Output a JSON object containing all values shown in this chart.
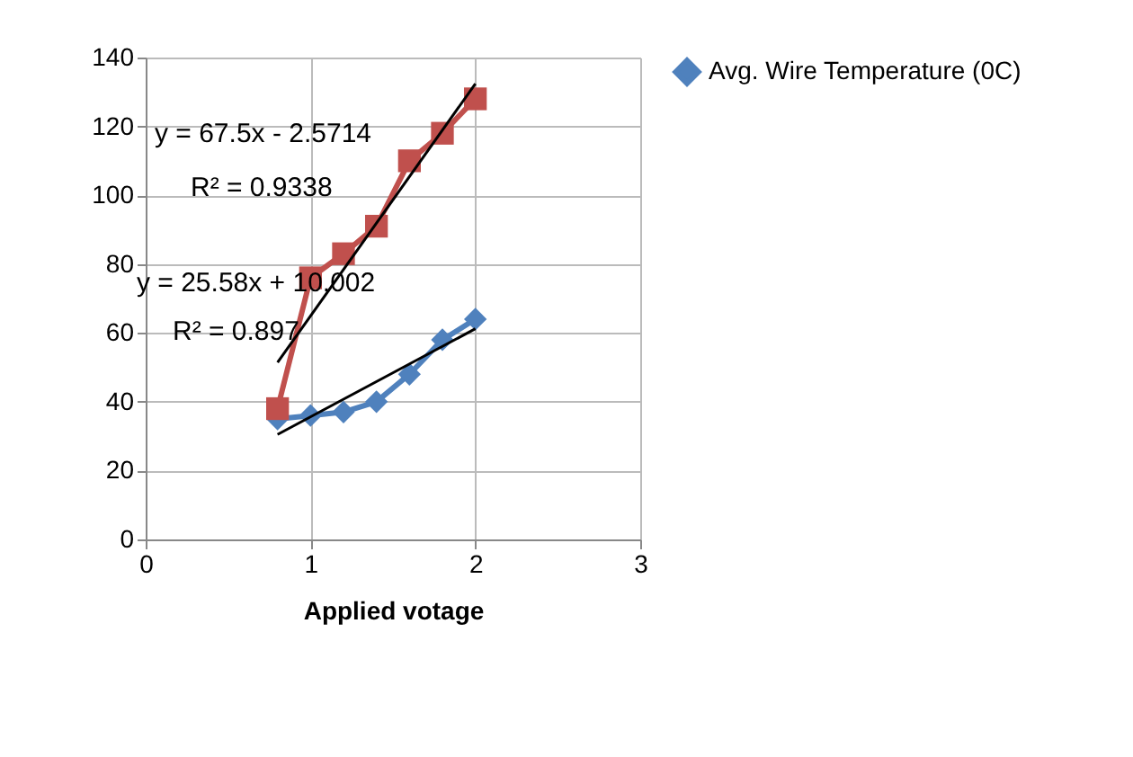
{
  "chart_data": {
    "type": "line",
    "xlabel": "Applied votage",
    "xlim": [
      0,
      3
    ],
    "xticks": [
      0,
      1,
      2,
      3
    ],
    "ylim": [
      0,
      140
    ],
    "yticks": [
      0,
      20,
      40,
      60,
      80,
      100,
      120,
      140
    ],
    "grid": true,
    "legend": "right",
    "line_style": "solid",
    "series": [
      {
        "name": "Avg. Wire Temperature (0C)",
        "color": "#4f81bd",
        "marker": "diamond",
        "x": [
          0.8,
          1,
          1.2,
          1.4,
          1.6,
          1.8,
          2
        ],
        "values": [
          35,
          36,
          37,
          40,
          48,
          58,
          64
        ]
      },
      {
        "color": "#c0504d",
        "marker": "square",
        "x": [
          0.8,
          1,
          1.2,
          1.4,
          1.6,
          1.8,
          2
        ],
        "values": [
          38,
          76,
          83,
          91,
          110,
          118,
          128
        ]
      },
      {
        "type": "line",
        "color": "#000000",
        "marker": "none",
        "x": [
          0.8,
          2
        ],
        "values": [
          51.4,
          132.4
        ]
      },
      {
        "type": "line",
        "color": "#000000",
        "marker": "none",
        "x": [
          0.8,
          2
        ],
        "values": [
          30.5,
          61.2
        ]
      }
    ],
    "annotations": [
      "y = 67.5x - 2.5714",
      "R² = 0.9338",
      "y = 25.58x + 10.002",
      "R² = 0.897"
    ]
  }
}
